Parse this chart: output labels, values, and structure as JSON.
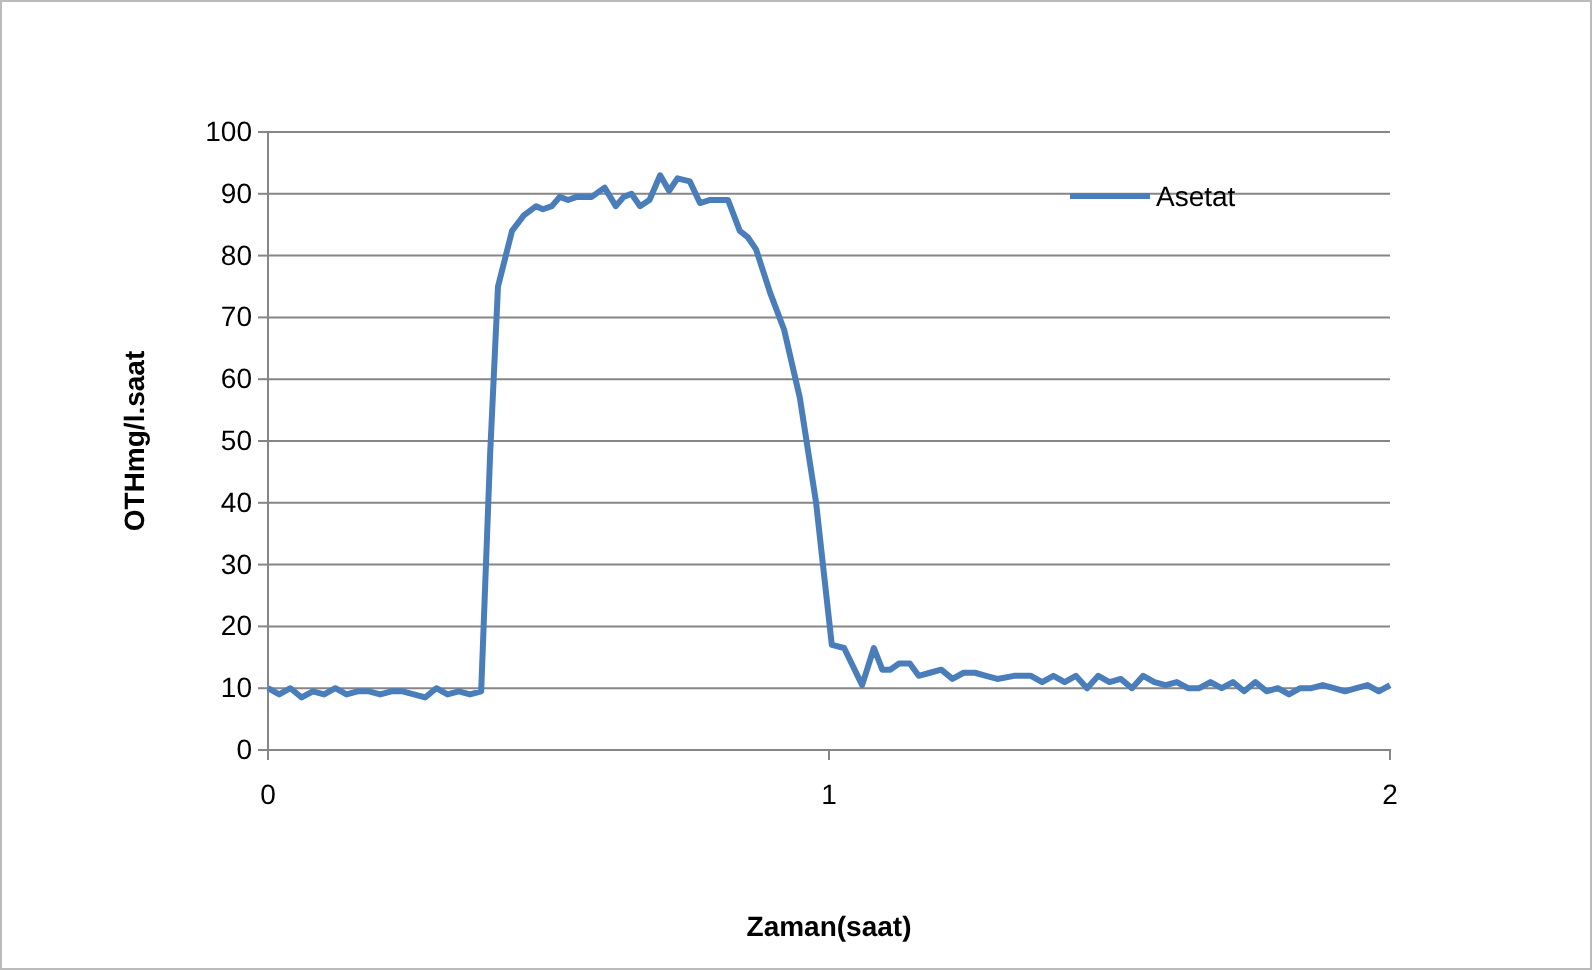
{
  "chart_data": {
    "type": "line",
    "xlabel": "Zaman(saat)",
    "ylabel": "OTHmg/l.saat",
    "xlim": [
      0,
      2
    ],
    "xticks": [
      0,
      1,
      2
    ],
    "ylim": [
      0,
      100
    ],
    "yticks": [
      0,
      10,
      20,
      30,
      40,
      50,
      60,
      70,
      80,
      90,
      100
    ],
    "grid": "y",
    "legend": "top right",
    "marker": "none",
    "line_style": "solid",
    "series": [
      {
        "name": "Asetat",
        "color": "#4a7ebb",
        "x": [
          0,
          0.02,
          0.04,
          0.06,
          0.08,
          0.1,
          0.12,
          0.14,
          0.16,
          0.18,
          0.2,
          0.22,
          0.24,
          0.26,
          0.28,
          0.3,
          0.32,
          0.34,
          0.36,
          0.38,
          0.396,
          0.41,
          0.435,
          0.456,
          0.478,
          0.49,
          0.506,
          0.52,
          0.535,
          0.55,
          0.577,
          0.6,
          0.62,
          0.634,
          0.648,
          0.663,
          0.68,
          0.699,
          0.715,
          0.73,
          0.752,
          0.77,
          0.788,
          0.82,
          0.841,
          0.855,
          0.87,
          0.895,
          0.92,
          0.948,
          0.977,
          1.005,
          1.027,
          1.059,
          1.08,
          1.095,
          1.109,
          1.125,
          1.144,
          1.16,
          1.18,
          1.2,
          1.22,
          1.24,
          1.26,
          1.28,
          1.3,
          1.33,
          1.36,
          1.38,
          1.4,
          1.42,
          1.44,
          1.46,
          1.48,
          1.5,
          1.52,
          1.54,
          1.56,
          1.58,
          1.6,
          1.62,
          1.64,
          1.66,
          1.68,
          1.7,
          1.72,
          1.74,
          1.76,
          1.78,
          1.8,
          1.82,
          1.84,
          1.86,
          1.88,
          1.9,
          1.92,
          1.94,
          1.96,
          1.98,
          2
        ],
        "values": [
          10,
          9,
          10,
          8.5,
          9.5,
          9,
          10,
          9,
          9.5,
          9.5,
          9,
          9.5,
          9.5,
          9,
          8.5,
          10,
          9,
          9.5,
          9,
          9.5,
          48,
          75,
          84,
          86.5,
          88,
          87.5,
          88,
          89.5,
          89,
          89.5,
          89.5,
          91,
          88,
          89.5,
          90,
          88,
          89,
          93,
          90.5,
          92.5,
          92,
          88.5,
          89,
          89,
          84,
          83,
          81,
          74,
          68,
          57,
          40,
          17,
          16.5,
          10.5,
          16.5,
          13,
          13,
          14,
          14,
          12,
          12.5,
          13,
          11.5,
          12.5,
          12.5,
          12,
          11.5,
          12,
          12,
          11,
          12,
          11,
          12,
          10,
          12,
          11,
          11.5,
          10,
          12,
          11,
          10.5,
          11,
          10,
          10,
          11,
          10,
          11,
          9.5,
          11,
          9.5,
          10,
          9,
          10,
          10,
          10.5,
          10,
          9.5,
          10,
          10.5,
          9.5,
          10.5
        ]
      }
    ]
  }
}
